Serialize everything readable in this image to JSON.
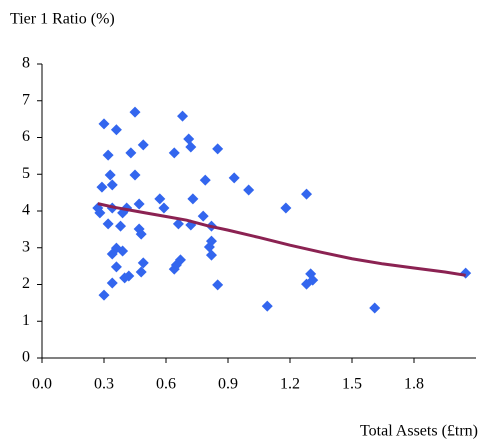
{
  "chart_data": {
    "type": "scatter",
    "y_label": "Tier 1 Ratio (%)",
    "x_label": "Total Assets (£trn)",
    "xlim": [
      0,
      2.1
    ],
    "xticks": [
      {
        "value": 0,
        "label": "0.0"
      },
      0.3,
      0.6,
      0.9,
      1.2,
      1.5,
      1.8
    ],
    "ylim": [
      0,
      8
    ],
    "yticks": [
      0,
      1,
      2,
      3,
      4,
      5,
      6,
      7,
      8
    ],
    "grid": false,
    "series": [
      {
        "type": "scatter",
        "color": "#3366ee",
        "x": [
          0.3,
          0.36,
          0.45,
          0.68,
          0.32,
          0.43,
          0.49,
          0.71,
          0.72,
          0.85,
          0.64,
          0.33,
          0.45,
          0.79,
          0.93,
          1.0,
          1.28,
          1.18,
          0.29,
          0.34,
          0.57,
          0.73,
          0.59,
          0.27,
          0.28,
          0.34,
          0.39,
          0.41,
          0.47,
          0.78,
          0.32,
          0.38,
          0.47,
          0.48,
          0.66,
          0.72,
          0.82,
          0.39,
          0.36,
          0.34,
          0.81,
          0.82,
          0.82,
          0.67,
          0.65,
          0.64,
          0.36,
          0.49,
          0.48,
          0.4,
          0.42,
          0.34,
          0.85,
          0.3,
          1.3,
          1.31,
          1.28,
          2.05,
          1.09,
          1.61
        ],
        "values": [
          6.37,
          6.21,
          6.69,
          6.58,
          5.52,
          5.58,
          5.8,
          5.96,
          5.74,
          5.69,
          5.58,
          4.98,
          4.98,
          4.84,
          4.9,
          4.57,
          4.46,
          4.08,
          4.65,
          4.71,
          4.33,
          4.33,
          4.08,
          4.08,
          3.95,
          4.08,
          3.95,
          4.08,
          4.19,
          3.86,
          3.65,
          3.59,
          3.51,
          3.37,
          3.65,
          3.62,
          3.59,
          2.91,
          2.99,
          2.83,
          3.02,
          3.18,
          2.8,
          2.67,
          2.53,
          2.42,
          2.48,
          2.59,
          2.34,
          2.18,
          2.23,
          2.04,
          1.99,
          1.71,
          2.29,
          2.12,
          2.01,
          2.31,
          1.41,
          1.36
        ]
      },
      {
        "type": "line",
        "color": "#8b2252",
        "x": [
          0.27,
          0.35,
          0.5,
          0.6,
          0.7,
          0.8,
          0.9,
          1.05,
          1.2,
          1.35,
          1.5,
          1.65,
          1.8,
          1.95,
          2.05
        ],
        "values": [
          4.2,
          4.1,
          3.95,
          3.85,
          3.75,
          3.6,
          3.48,
          3.28,
          3.07,
          2.88,
          2.7,
          2.56,
          2.45,
          2.34,
          2.25
        ]
      }
    ]
  }
}
